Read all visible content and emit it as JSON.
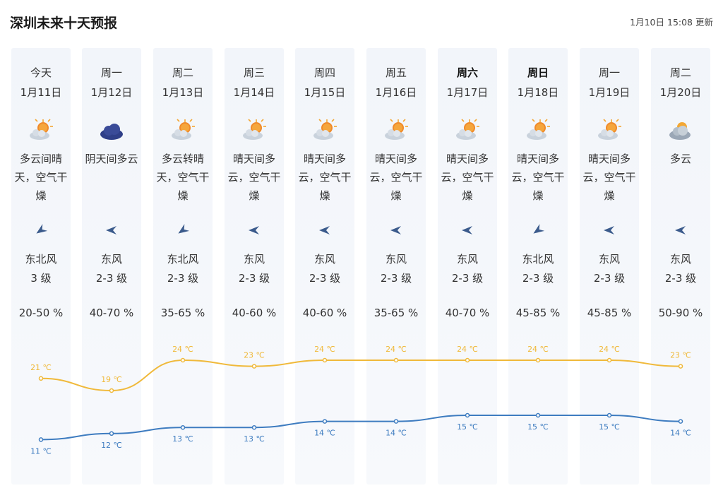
{
  "header": {
    "title": "深圳未来十天预报",
    "update": "1月10日 15:08 更新"
  },
  "days": [
    {
      "week": "今天",
      "bold": false,
      "date": "1月11日",
      "icon": "partly-sunny-icon",
      "desc": [
        "多云间晴",
        "天，空气干",
        "燥"
      ],
      "wind_dir": "northeast",
      "wind": "东北风",
      "level": "3 级",
      "humidity": "20-50 %",
      "high": "21 ℃",
      "low": "11 ℃"
    },
    {
      "week": "周一",
      "bold": false,
      "date": "1月12日",
      "icon": "overcast-cloud-icon",
      "desc": [
        "阴天间多云",
        "",
        ""
      ],
      "wind_dir": "east",
      "wind": "东风",
      "level": "2-3 级",
      "humidity": "40-70 %",
      "high": "19 ℃",
      "low": "12 ℃"
    },
    {
      "week": "周二",
      "bold": false,
      "date": "1月13日",
      "icon": "partly-sunny-icon",
      "desc": [
        "多云转晴",
        "天，空气干",
        "燥"
      ],
      "wind_dir": "northeast",
      "wind": "东北风",
      "level": "2-3 级",
      "humidity": "35-65 %",
      "high": "24 ℃",
      "low": "13 ℃"
    },
    {
      "week": "周三",
      "bold": false,
      "date": "1月14日",
      "icon": "partly-sunny-icon",
      "desc": [
        "晴天间多",
        "云，空气干",
        "燥"
      ],
      "wind_dir": "east",
      "wind": "东风",
      "level": "2-3 级",
      "humidity": "40-60 %",
      "high": "23 ℃",
      "low": "13 ℃"
    },
    {
      "week": "周四",
      "bold": false,
      "date": "1月15日",
      "icon": "partly-sunny-icon",
      "desc": [
        "晴天间多",
        "云，空气干",
        "燥"
      ],
      "wind_dir": "east",
      "wind": "东风",
      "level": "2-3 级",
      "humidity": "40-60 %",
      "high": "24 ℃",
      "low": "14 ℃"
    },
    {
      "week": "周五",
      "bold": false,
      "date": "1月16日",
      "icon": "partly-sunny-icon",
      "desc": [
        "晴天间多",
        "云，空气干",
        "燥"
      ],
      "wind_dir": "east",
      "wind": "东风",
      "level": "2-3 级",
      "humidity": "35-65 %",
      "high": "24 ℃",
      "low": "14 ℃"
    },
    {
      "week": "周六",
      "bold": true,
      "date": "1月17日",
      "icon": "partly-sunny-icon",
      "desc": [
        "晴天间多",
        "云，空气干",
        "燥"
      ],
      "wind_dir": "east",
      "wind": "东风",
      "level": "2-3 级",
      "humidity": "40-70 %",
      "high": "24 ℃",
      "low": "15 ℃"
    },
    {
      "week": "周日",
      "bold": true,
      "date": "1月18日",
      "icon": "partly-sunny-icon",
      "desc": [
        "晴天间多",
        "云，空气干",
        "燥"
      ],
      "wind_dir": "northeast",
      "wind": "东北风",
      "level": "2-3 级",
      "humidity": "45-85 %",
      "high": "24 ℃",
      "low": "15 ℃"
    },
    {
      "week": "周一",
      "bold": false,
      "date": "1月19日",
      "icon": "partly-sunny-icon",
      "desc": [
        "晴天间多",
        "云，空气干",
        "燥"
      ],
      "wind_dir": "east",
      "wind": "东风",
      "level": "2-3 级",
      "humidity": "45-85 %",
      "high": "24 ℃",
      "low": "15 ℃"
    },
    {
      "week": "周二",
      "bold": false,
      "date": "1月20日",
      "icon": "cloudy-icon",
      "desc": [
        "多云",
        "",
        ""
      ],
      "wind_dir": "east",
      "wind": "东风",
      "level": "2-3 级",
      "humidity": "50-90 %",
      "high": "23 ℃",
      "low": "14 ℃"
    }
  ],
  "chart_data": {
    "type": "line",
    "x": [
      "1月11日",
      "1月12日",
      "1月13日",
      "1月14日",
      "1月15日",
      "1月16日",
      "1月17日",
      "1月18日",
      "1月19日",
      "1月20日"
    ],
    "series": [
      {
        "values": [
          21,
          19,
          24,
          23,
          24,
          24,
          24,
          24,
          24,
          23
        ],
        "color": "#f0b93a"
      },
      {
        "values": [
          11,
          12,
          13,
          13,
          14,
          14,
          15,
          15,
          15,
          14
        ],
        "color": "#3e7cc0"
      }
    ]
  }
}
